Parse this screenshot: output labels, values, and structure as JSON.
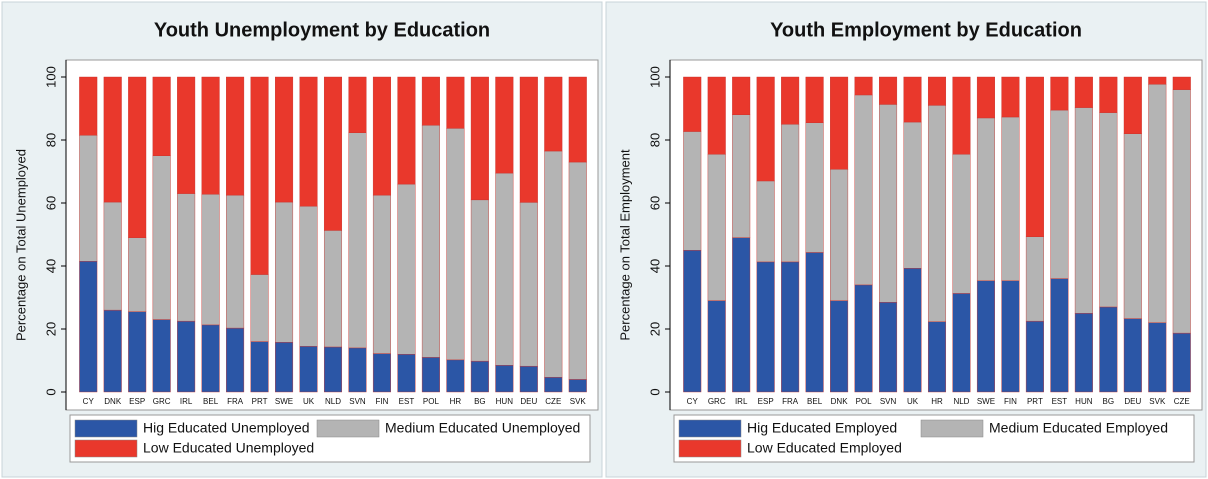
{
  "chart_data": [
    {
      "type": "bar",
      "stacked": true,
      "title": "Youth Unemployment by Education",
      "ylabel": "Percentage on Total Unemployed",
      "categories": [
        "CY",
        "DNK",
        "ESP",
        "GRC",
        "IRL",
        "BEL",
        "FRA",
        "PRT",
        "SWE",
        "UK",
        "NLD",
        "SVN",
        "FIN",
        "EST",
        "POL",
        "HR",
        "BG",
        "HUN",
        "DEU",
        "CZE",
        "SVK"
      ],
      "series": [
        {
          "name": "Hig Educated Unemployed",
          "color": "#2b56a6",
          "values": [
            41.5,
            26,
            25.5,
            23,
            22.5,
            21.3,
            20.3,
            16,
            15.8,
            14.5,
            14.3,
            14,
            12.2,
            12,
            11,
            10.2,
            9.8,
            8.5,
            8.2,
            4.7,
            4
          ]
        },
        {
          "name": "Medium Educated Unemployed",
          "color": "#b4b4b4",
          "values": [
            40,
            34.3,
            23.5,
            52,
            40.5,
            41.5,
            42.2,
            21.3,
            44.5,
            44.5,
            37,
            68.3,
            50.3,
            54,
            73.7,
            73.5,
            51.2,
            61,
            52,
            71.8,
            69
          ]
        },
        {
          "name": "Low Educated Unemployed",
          "color": "#e9382c",
          "values": [
            18.5,
            39.7,
            51,
            25,
            37,
            37.2,
            37.5,
            62.7,
            39.7,
            41,
            48.7,
            17.7,
            37.5,
            34,
            15.3,
            16.3,
            39,
            30.5,
            39.8,
            23.5,
            27
          ]
        }
      ],
      "ylim": [
        0,
        100
      ],
      "yticks": [
        0,
        20,
        40,
        60,
        80,
        100
      ]
    },
    {
      "type": "bar",
      "stacked": true,
      "title": "Youth Employment by Education",
      "ylabel": "Percentage on Total Employment",
      "categories": [
        "CY",
        "GRC",
        "IRL",
        "ESP",
        "FRA",
        "BEL",
        "DNK",
        "POL",
        "SVN",
        "UK",
        "HR",
        "NLD",
        "SWE",
        "FIN",
        "PRT",
        "EST",
        "HUN",
        "BG",
        "DEU",
        "SVK",
        "CZE"
      ],
      "series": [
        {
          "name": "Hig Educated Employed",
          "color": "#2b56a6",
          "values": [
            45,
            29,
            49,
            41.3,
            41.3,
            44.3,
            29,
            34,
            28.5,
            39.3,
            22.3,
            31.3,
            35.3,
            35.3,
            22.5,
            36,
            25,
            27,
            23.3,
            22,
            18.7
          ]
        },
        {
          "name": "Medium Educated Employed",
          "color": "#b4b4b4",
          "values": [
            37.7,
            46.5,
            39,
            25.7,
            43.7,
            41.2,
            41.7,
            60.3,
            62.8,
            46.4,
            68.7,
            44.2,
            51.7,
            52,
            26.8,
            53.5,
            65.3,
            61.7,
            58.7,
            75.7,
            77.3
          ]
        },
        {
          "name": "Low Educated Employed",
          "color": "#e9382c",
          "values": [
            17.3,
            24.5,
            12,
            33,
            15,
            14.5,
            29.3,
            5.7,
            8.7,
            14.3,
            9,
            24.5,
            13,
            12.7,
            50.7,
            10.5,
            9.7,
            11.3,
            18,
            2.3,
            4
          ]
        }
      ],
      "ylim": [
        0,
        100
      ],
      "yticks": [
        0,
        20,
        40,
        60,
        80,
        100
      ]
    }
  ]
}
